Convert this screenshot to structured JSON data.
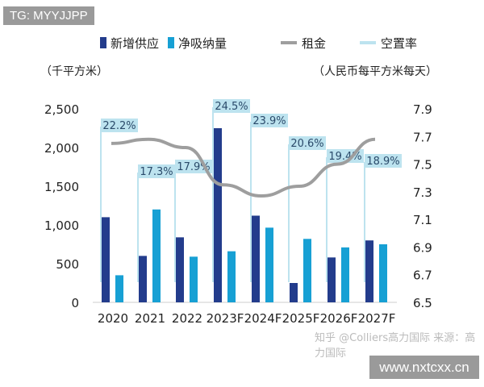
{
  "watermark_top": "TG: MYYJJPP",
  "watermark_bottom": "www.nxtcxx.cn",
  "source_text": "知乎 @Colliers高力国际 来源：高力国际",
  "chart_data": {
    "type": "bar",
    "categories": [
      "2020",
      "2021",
      "2022",
      "2023F",
      "2024F",
      "2025F",
      "2026F",
      "2027F"
    ],
    "left_axis": {
      "label": "（千平方米）",
      "ylim": [
        0,
        2500
      ],
      "ticks": [
        "0",
        "500",
        "1,000",
        "1,500",
        "2,000",
        "2,500"
      ]
    },
    "right_axis": {
      "label": "（人民币每平方米每天）",
      "ylim": [
        6.5,
        7.9
      ],
      "ticks": [
        "6.5",
        "6.7",
        "6.9",
        "7.1",
        "7.3",
        "7.5",
        "7.7",
        "7.9"
      ]
    },
    "series": [
      {
        "name": "新增供应",
        "type": "bar",
        "color": "#233c8c",
        "values": [
          1100,
          600,
          840,
          2250,
          1120,
          250,
          580,
          800
        ]
      },
      {
        "name": "净吸纳量",
        "type": "bar",
        "color": "#17a0d4",
        "values": [
          350,
          1200,
          590,
          660,
          965,
          820,
          710,
          750
        ]
      },
      {
        "name": "租金",
        "type": "line",
        "color": "#9e9e9e",
        "values": [
          7.65,
          7.68,
          7.62,
          7.35,
          7.27,
          7.34,
          7.5,
          7.68
        ]
      },
      {
        "name": "空置率",
        "type": "label",
        "color": "#bde3ef",
        "values": [
          "22.2%",
          "17.3%",
          "17.9%",
          "24.5%",
          "23.9%",
          "20.6%",
          "19.4%",
          "18.9%"
        ]
      }
    ],
    "legend": "top"
  }
}
